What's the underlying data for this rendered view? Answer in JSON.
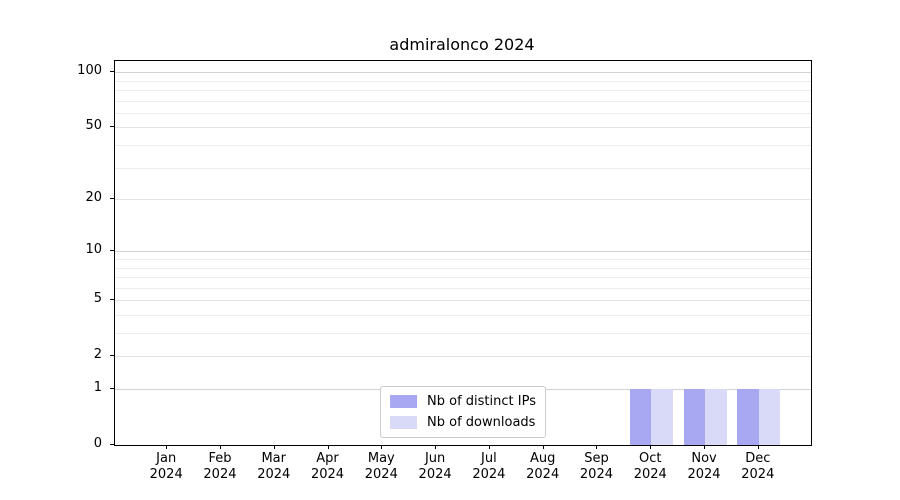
{
  "figure": {
    "title": "admiralonco 2024"
  },
  "chart_data": {
    "type": "bar",
    "title": "admiralonco 2024",
    "categories": [
      "Jan",
      "Feb",
      "Mar",
      "Apr",
      "May",
      "Jun",
      "Jul",
      "Aug",
      "Sep",
      "Oct",
      "Nov",
      "Dec"
    ],
    "tick_label_year": "2024",
    "series": [
      {
        "name": "Nb of distinct IPs",
        "color": "#a8a8f2",
        "values": [
          0,
          0,
          0,
          0,
          0,
          0,
          0,
          0,
          0,
          1,
          1,
          1
        ]
      },
      {
        "name": "Nb of downloads",
        "color": "#d9d9f8",
        "values": [
          0,
          0,
          0,
          0,
          0,
          0,
          0,
          0,
          0,
          1,
          1,
          1
        ]
      }
    ],
    "yscale": "log1p",
    "ylim": [
      0,
      115
    ],
    "y_ticks": [
      0,
      1,
      2,
      5,
      10,
      20,
      50,
      100
    ],
    "y_decade_ticks": [
      1,
      10,
      100
    ],
    "y_minor_gridlines": [
      3,
      4,
      6,
      7,
      8,
      9,
      30,
      40,
      60,
      70,
      80,
      90
    ],
    "xlim": [
      -0.97,
      11.97
    ],
    "bar_width": 0.4,
    "grid": "horizontal",
    "legend_position": "lower center",
    "colors": {
      "grid_major": "#d2d2d2",
      "grid_mid": "#e4e4e4",
      "grid_minor": "#ececec",
      "spine": "#000000",
      "text": "#000000",
      "background": "#ffffff",
      "legend_border": "#cccccc"
    }
  }
}
